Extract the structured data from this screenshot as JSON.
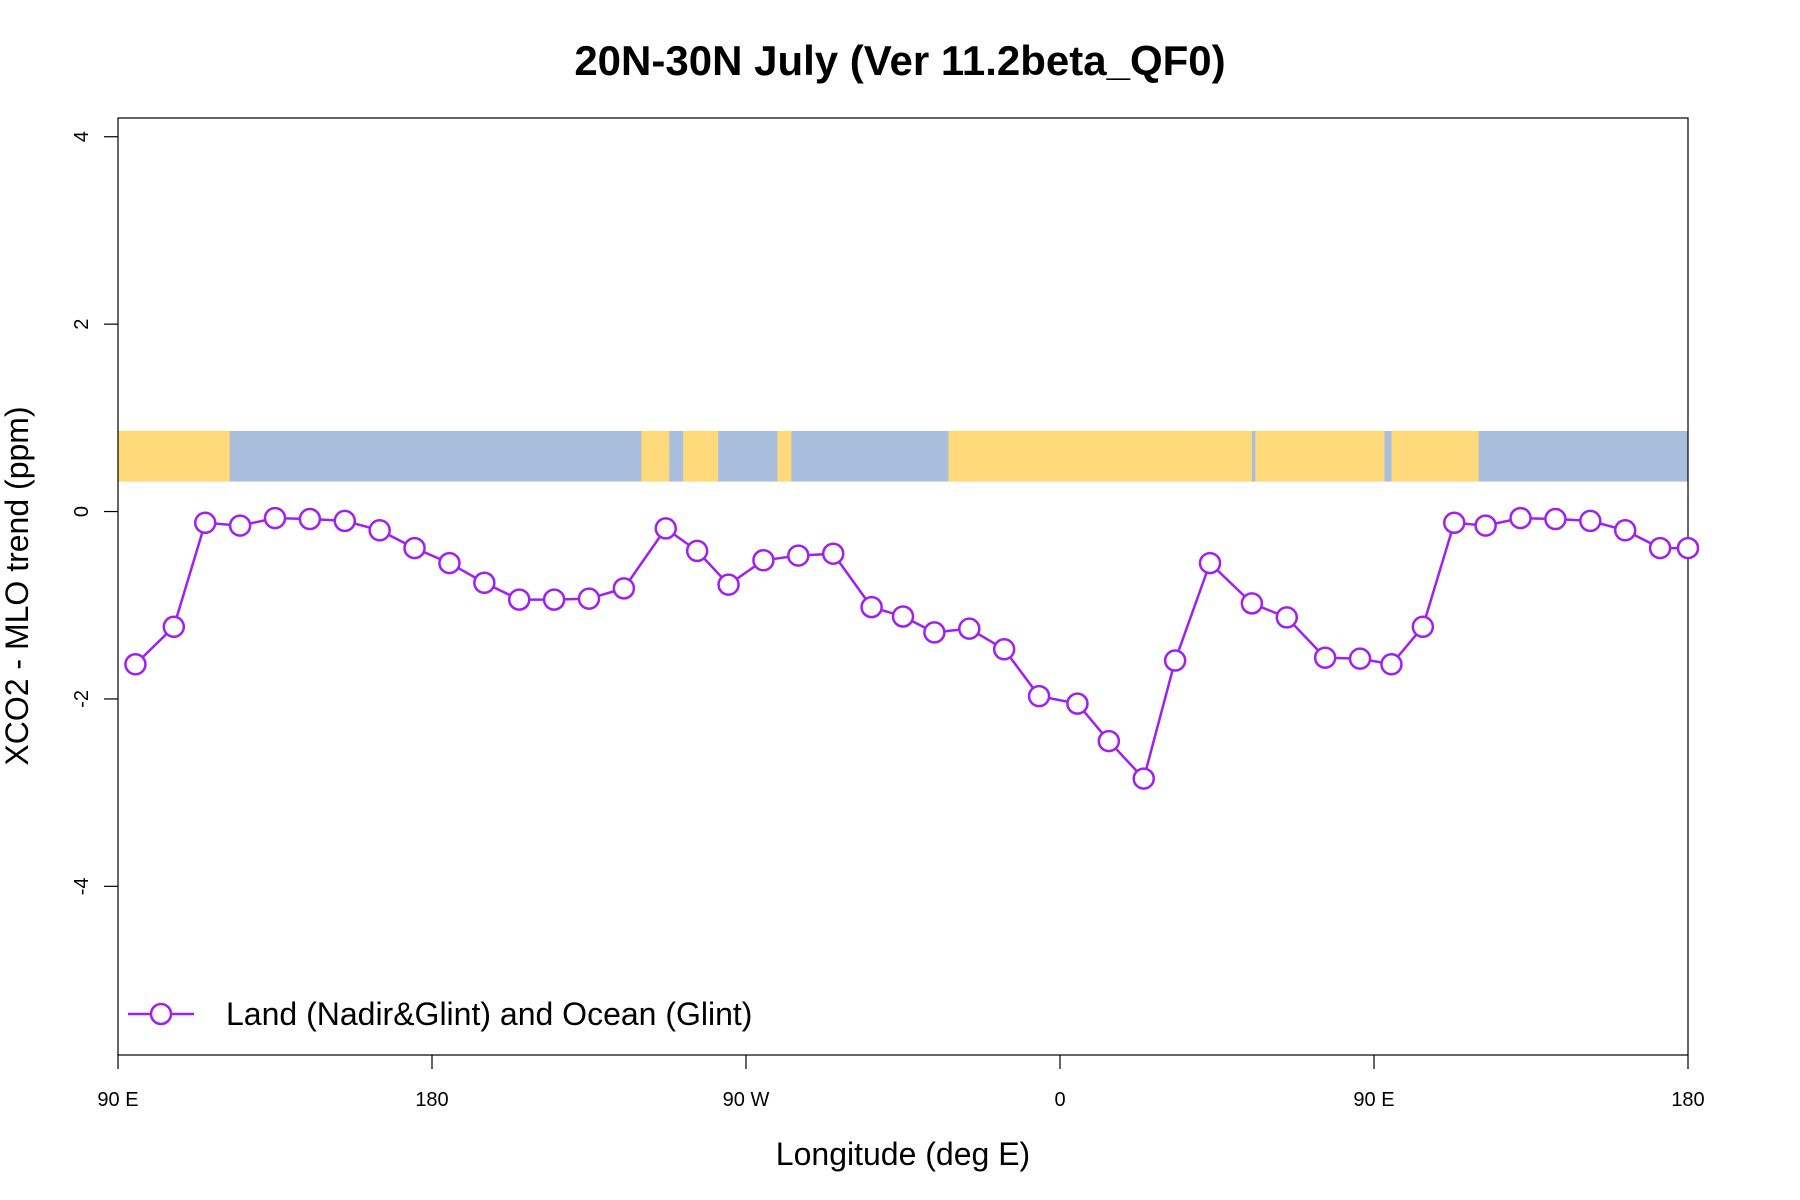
{
  "chart_data": {
    "type": "line",
    "title": "20N-30N July (Ver 11.2beta_QF0)",
    "xlabel": "Longitude (deg E)",
    "ylabel": "XCO2 - MLO trend (ppm)",
    "xlim": [
      90,
      540
    ],
    "ylim": [
      -5.8,
      4.2
    ],
    "x_ticks": [
      {
        "value": 90,
        "label": "90 E"
      },
      {
        "value": 180,
        "label": "180"
      },
      {
        "value": 270,
        "label": "90 W"
      },
      {
        "value": 360,
        "label": "0"
      },
      {
        "value": 450,
        "label": "90 E"
      },
      {
        "value": 540,
        "label": "180"
      }
    ],
    "y_ticks": [
      {
        "value": 4,
        "label": "4"
      },
      {
        "value": 2,
        "label": "2"
      },
      {
        "value": 0,
        "label": "0"
      },
      {
        "value": -2,
        "label": "-2"
      },
      {
        "value": -4,
        "label": "-4"
      }
    ],
    "grid": false,
    "legend": {
      "position": "bottom-left",
      "entries": [
        "Land (Nadir&Glint) and Ocean (Glint)"
      ]
    },
    "series": [
      {
        "name": "Land (Nadir&Glint) and Ocean (Glint)",
        "color": "#a020f0",
        "marker": "open-circle",
        "x": [
          95,
          106,
          115,
          125,
          135,
          145,
          155,
          165,
          175,
          185,
          195,
          205,
          215,
          225,
          235,
          247,
          256,
          265,
          275,
          285,
          295,
          306,
          315,
          324,
          334,
          344,
          354,
          365,
          374,
          384,
          393,
          403,
          415,
          425,
          436,
          446,
          455,
          464,
          473,
          482,
          492,
          502,
          512,
          522,
          532,
          540
        ],
        "y": [
          -1.63,
          -1.23,
          -0.12,
          -0.15,
          -0.07,
          -0.08,
          -0.1,
          -0.2,
          -0.39,
          -0.55,
          -0.76,
          -0.94,
          -0.94,
          -0.93,
          -0.82,
          -0.18,
          -0.42,
          -0.78,
          -0.52,
          -0.47,
          -0.45,
          -1.02,
          -1.12,
          -1.29,
          -1.25,
          -1.47,
          -1.97,
          -2.05,
          -2.45,
          -2.85,
          -1.59,
          -0.55,
          -0.98,
          -1.13,
          -1.56,
          -1.57,
          -1.63,
          -1.23,
          -0.12,
          -0.15,
          -0.07,
          -0.08,
          -0.1,
          -0.2,
          -0.39,
          -0.39
        ]
      }
    ],
    "background_band": {
      "description_colors": {
        "land": "#ffd97a",
        "ocean": "#a8bedc"
      },
      "y_range": [
        0.32,
        0.86
      ],
      "land_spans": [
        [
          90,
          92
        ],
        [
          92,
          122
        ],
        [
          240,
          248
        ],
        [
          252,
          262
        ],
        [
          279,
          283
        ],
        [
          328,
          400
        ],
        [
          398,
          415
        ],
        [
          416,
          453
        ],
        [
          455,
          480
        ]
      ]
    }
  }
}
